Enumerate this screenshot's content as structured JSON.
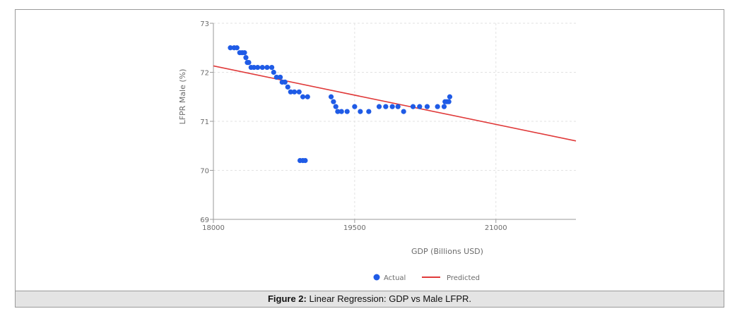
{
  "caption": {
    "label": "Figure 2:",
    "text": " Linear Regression: GDP vs Male LFPR."
  },
  "chart_data": {
    "type": "scatter",
    "xlabel": "GDP (Billions USD)",
    "ylabel": "LFPR Male (%)",
    "xlim": [
      18000,
      21850
    ],
    "ylim": [
      69,
      73
    ],
    "x_ticks": [
      "18000",
      "19500",
      "21000"
    ],
    "y_ticks": [
      "69",
      "70",
      "71",
      "72",
      "73"
    ],
    "grid": true,
    "legend_position": "bottom-center",
    "colors": {
      "actual": "#1f5be6",
      "predicted": "#e03a3a"
    },
    "series": [
      {
        "name": "Actual",
        "kind": "scatter",
        "points": [
          [
            18180,
            72.5
          ],
          [
            18220,
            72.5
          ],
          [
            18250,
            72.5
          ],
          [
            18280,
            72.4
          ],
          [
            18305,
            72.4
          ],
          [
            18330,
            72.4
          ],
          [
            18345,
            72.3
          ],
          [
            18360,
            72.2
          ],
          [
            18375,
            72.2
          ],
          [
            18400,
            72.1
          ],
          [
            18430,
            72.1
          ],
          [
            18470,
            72.1
          ],
          [
            18520,
            72.1
          ],
          [
            18570,
            72.1
          ],
          [
            18620,
            72.1
          ],
          [
            18640,
            72.0
          ],
          [
            18670,
            71.9
          ],
          [
            18710,
            71.9
          ],
          [
            18730,
            71.8
          ],
          [
            18760,
            71.8
          ],
          [
            18790,
            71.7
          ],
          [
            18820,
            71.6
          ],
          [
            18860,
            71.6
          ],
          [
            18910,
            71.6
          ],
          [
            18950,
            71.5
          ],
          [
            19000,
            71.5
          ],
          [
            18920,
            70.2
          ],
          [
            18950,
            70.2
          ],
          [
            18975,
            70.2
          ],
          [
            19250,
            71.5
          ],
          [
            19275,
            71.4
          ],
          [
            19300,
            71.3
          ],
          [
            19320,
            71.2
          ],
          [
            19360,
            71.2
          ],
          [
            19420,
            71.2
          ],
          [
            19500,
            71.3
          ],
          [
            19560,
            71.2
          ],
          [
            19650,
            71.2
          ],
          [
            19760,
            71.3
          ],
          [
            19830,
            71.3
          ],
          [
            19900,
            71.3
          ],
          [
            19960,
            71.3
          ],
          [
            20020,
            71.2
          ],
          [
            20120,
            71.3
          ],
          [
            20190,
            71.3
          ],
          [
            20270,
            71.3
          ],
          [
            20380,
            71.3
          ],
          [
            20450,
            71.3
          ],
          [
            20460,
            71.4
          ],
          [
            20480,
            71.4
          ],
          [
            20500,
            71.4
          ],
          [
            20510,
            71.5
          ]
        ]
      },
      {
        "name": "Predicted",
        "kind": "line",
        "points": [
          [
            18000,
            72.13
          ],
          [
            21850,
            70.6
          ]
        ]
      }
    ]
  }
}
